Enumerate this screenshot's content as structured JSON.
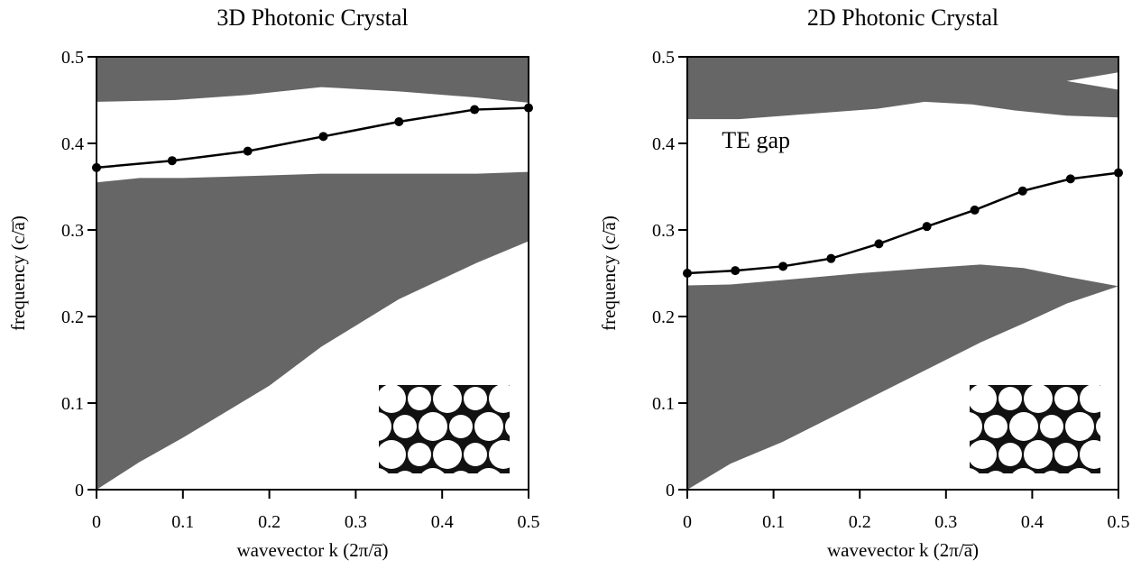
{
  "chart_data": [
    {
      "type": "line",
      "title": "3D Photonic Crystal",
      "xlabel": "wavevector k (2π/a̅)",
      "ylabel": "frequency (c/a̅)",
      "xlim": [
        0,
        0.5
      ],
      "ylim": [
        0,
        0.5
      ],
      "xticks": [
        0,
        0.1,
        0.2,
        0.3,
        0.4,
        0.5
      ],
      "yticks": [
        0,
        0.1,
        0.2,
        0.3,
        0.4,
        0.5
      ],
      "bands": [
        {
          "color": "#666666",
          "x": [
            0,
            0.09,
            0.175,
            0.26,
            0.35,
            0.44,
            0.5
          ],
          "lower": [
            0.448,
            0.45,
            0.456,
            0.465,
            0.46,
            0.453,
            0.447
          ],
          "upper": [
            0.5,
            0.5,
            0.5,
            0.5,
            0.5,
            0.5,
            0.5
          ]
        },
        {
          "color": "#666666",
          "x": [
            0,
            0.05,
            0.1,
            0.2,
            0.26,
            0.35,
            0.44,
            0.5
          ],
          "lower": [
            0,
            0.032,
            0.06,
            0.12,
            0.165,
            0.22,
            0.262,
            0.287
          ],
          "upper": [
            0.355,
            0.36,
            0.36,
            0.363,
            0.365,
            0.365,
            0.365,
            0.367
          ]
        }
      ],
      "series": [
        {
          "color": "#000000",
          "x": [
            0,
            0.0875,
            0.175,
            0.2625,
            0.35,
            0.4375,
            0.5
          ],
          "values": [
            0.372,
            0.38,
            0.391,
            0.408,
            0.425,
            0.439,
            0.441
          ]
        }
      ]
    },
    {
      "type": "line",
      "title": "2D Photonic Crystal",
      "xlabel": "wavevector k (2π/a̅)",
      "ylabel": "frequency (c/a̅)",
      "annotation": "TE gap",
      "xlim": [
        0,
        0.5
      ],
      "ylim": [
        0,
        0.5
      ],
      "xticks": [
        0,
        0.1,
        0.2,
        0.3,
        0.4,
        0.5
      ],
      "yticks": [
        0,
        0.1,
        0.2,
        0.3,
        0.4,
        0.5
      ],
      "bands": [
        {
          "color": "#666666",
          "x": [
            0,
            0.06,
            0.22,
            0.275,
            0.33,
            0.38,
            0.44,
            0.5
          ],
          "lower": [
            0.428,
            0.428,
            0.44,
            0.448,
            0.445,
            0.438,
            0.432,
            0.43
          ],
          "upper": [
            0.5,
            0.5,
            0.5,
            0.5,
            0.5,
            0.5,
            0.5,
            0.5
          ]
        },
        {
          "color": "#ffffff",
          "x": [
            0.44,
            0.5
          ],
          "lower": [
            0.472,
            0.462
          ],
          "upper": [
            0.472,
            0.482
          ]
        },
        {
          "color": "#666666",
          "x": [
            0,
            0.05,
            0.11,
            0.2,
            0.28,
            0.34,
            0.39,
            0.44,
            0.5
          ],
          "lower": [
            0,
            0.03,
            0.055,
            0.1,
            0.14,
            0.17,
            0.192,
            0.215,
            0.235
          ],
          "upper": [
            0.236,
            0.237,
            0.242,
            0.25,
            0.256,
            0.26,
            0.256,
            0.246,
            0.235
          ]
        }
      ],
      "series": [
        {
          "color": "#000000",
          "x": [
            0,
            0.0556,
            0.111,
            0.1667,
            0.2222,
            0.2778,
            0.3333,
            0.3889,
            0.4444,
            0.5
          ],
          "values": [
            0.25,
            0.253,
            0.258,
            0.267,
            0.284,
            0.304,
            0.323,
            0.345,
            0.359,
            0.366
          ]
        }
      ]
    }
  ]
}
